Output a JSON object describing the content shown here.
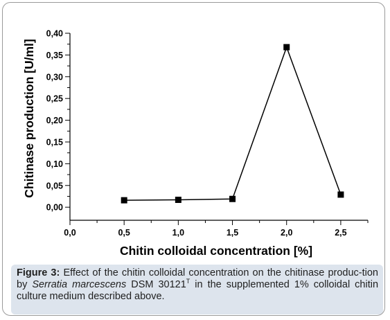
{
  "chart_data": {
    "type": "line",
    "title": "",
    "xlabel": "Chitin colloidal concentration [%]",
    "ylabel": "Chitinase production [U/ml]",
    "xlim": [
      0.0,
      2.75
    ],
    "ylim": [
      -0.03,
      0.4
    ],
    "x_ticks": [
      0.0,
      0.5,
      1.0,
      1.5,
      2.0,
      2.5
    ],
    "x_tick_labels": [
      "0,0",
      "0,5",
      "1,0",
      "1,5",
      "2,0",
      "2,5"
    ],
    "y_ticks": [
      0.0,
      0.05,
      0.1,
      0.15,
      0.2,
      0.25,
      0.3,
      0.35,
      0.4
    ],
    "y_tick_labels": [
      "0,00",
      "0,05",
      "0,10",
      "0,15",
      "0,20",
      "0,25",
      "0,30",
      "0,35",
      "0,40"
    ],
    "grid": false,
    "legend": "none",
    "marker": "square",
    "color": "#000000",
    "series": [
      {
        "x": [
          0.5,
          1.0,
          1.5,
          2.0,
          2.5
        ],
        "y": [
          0.016,
          0.017,
          0.019,
          0.368,
          0.029
        ]
      }
    ]
  },
  "caption": {
    "label": "Figure 3:",
    "text_1": " Effect of the chitin colloidal concentration on the chitinase produc-tion by ",
    "organism": "Serratia marcescens",
    "text_2": " DSM 30121",
    "superscript": "T",
    "text_3": " in the supplemented 1% colloidal chitin culture medium described above."
  }
}
